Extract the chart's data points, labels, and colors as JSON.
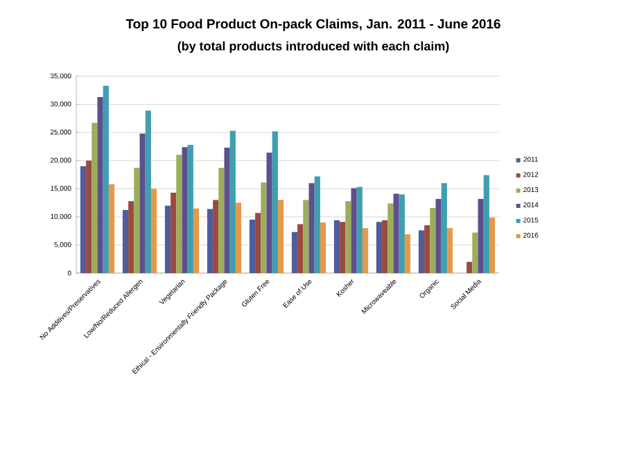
{
  "chart_data": {
    "type": "bar",
    "title": "Top 10 Food Product On-pack Claims, Jan. 2011 - June 2016",
    "subtitle": "(by total products introduced with each claim)",
    "categories": [
      "No Additives/Preservatives",
      "Low/No/Reduced Allergen",
      "Vegetarian",
      "Ethical - Environmentally Friendly Package",
      "Gluten Free",
      "Ease of Use",
      "Kosher",
      "Microwaveable",
      "Organic",
      "Social Media"
    ],
    "series": [
      {
        "name": "2011",
        "color": "#4f5d9a",
        "values": [
          19000,
          11200,
          12000,
          11400,
          9500,
          7300,
          9400,
          9100,
          7600,
          0
        ]
      },
      {
        "name": "2012",
        "color": "#9b4a3f",
        "values": [
          20000,
          12800,
          14300,
          13000,
          10700,
          8700,
          9100,
          9400,
          8500,
          2000
        ]
      },
      {
        "name": "2013",
        "color": "#9bae5a",
        "values": [
          26700,
          18700,
          21000,
          18700,
          16100,
          13000,
          12800,
          12400,
          11600,
          7200
        ]
      },
      {
        "name": "2014",
        "color": "#5e4f8f",
        "values": [
          31300,
          24800,
          22400,
          22300,
          21400,
          16000,
          15100,
          14100,
          13200,
          13200
        ]
      },
      {
        "name": "2015",
        "color": "#3f9fb0",
        "values": [
          33300,
          28900,
          22800,
          25300,
          25200,
          17200,
          15300,
          14000,
          16000,
          17400
        ]
      },
      {
        "name": "2016",
        "color": "#e59a4a",
        "values": [
          15800,
          15000,
          11500,
          12500,
          13000,
          9000,
          8000,
          6900,
          8000,
          9900
        ]
      }
    ],
    "ylim": [
      0,
      35000
    ],
    "yticks": [
      0,
      {
        "value": 5000,
        "label": "5,000"
      },
      {
        "value": 10000,
        "label": "10,000"
      },
      {
        "value": 15000,
        "label": "15,000"
      },
      {
        "value": 20000,
        "label": "20,000"
      },
      {
        "value": 25000,
        "label": "25,000"
      },
      {
        "value": 30000,
        "label": "30,000"
      },
      {
        "value": 35000,
        "label": "35,000"
      }
    ],
    "grid": "y",
    "legend": "right"
  }
}
